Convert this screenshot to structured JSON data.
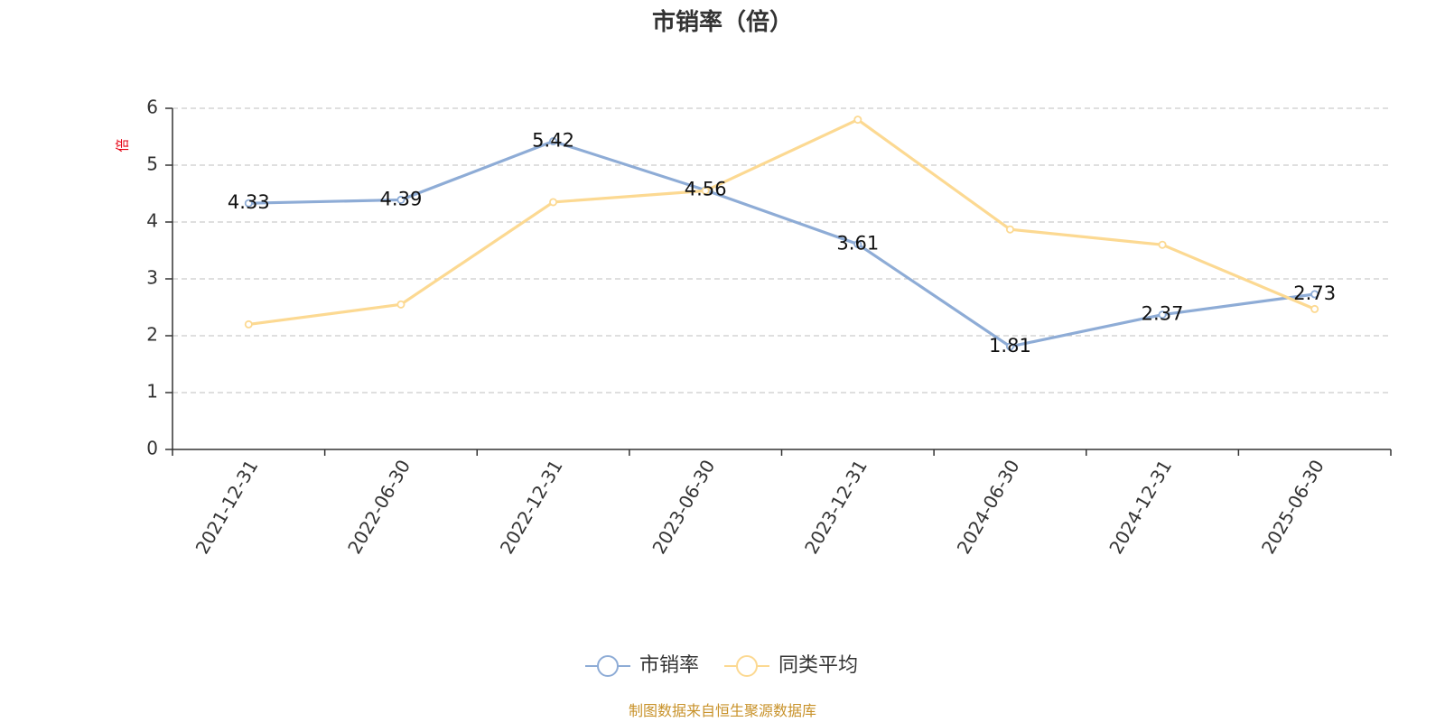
{
  "chart_data": {
    "type": "line",
    "title": "市销率（倍）",
    "ylabel": "倍",
    "categories": [
      "2021-12-31",
      "2022-06-30",
      "2022-12-31",
      "2023-06-30",
      "2023-12-31",
      "2024-06-30",
      "2024-12-31",
      "2025-06-30"
    ],
    "ylim": [
      0,
      6
    ],
    "yticks": [
      0,
      1,
      2,
      3,
      4,
      5,
      6
    ],
    "grid": true,
    "legend_position": "bottom",
    "series": [
      {
        "name": "市销率",
        "color": "#8eacd6",
        "show_labels": true,
        "values": [
          4.33,
          4.39,
          5.42,
          4.56,
          3.61,
          1.81,
          2.37,
          2.73
        ]
      },
      {
        "name": "同类平均",
        "color": "#fcd992",
        "show_labels": false,
        "values": [
          2.2,
          2.55,
          4.35,
          4.55,
          5.8,
          3.87,
          3.6,
          2.47
        ]
      }
    ]
  },
  "source_text": "制图数据来自恒生聚源数据库"
}
